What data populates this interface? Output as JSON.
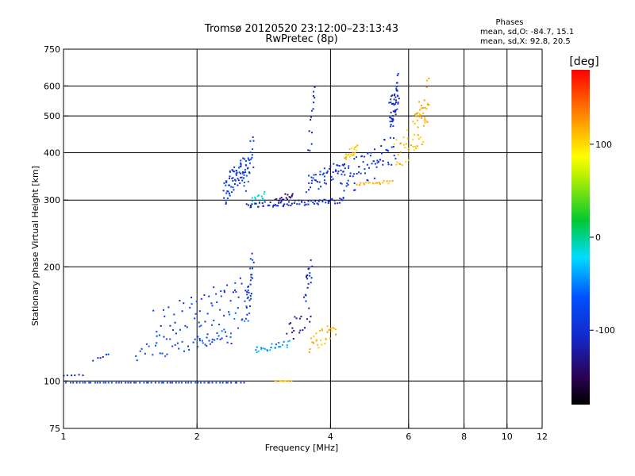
{
  "header": {
    "title": "Tromsø 20120520 23:12:00–23:13:43",
    "subtitle": "RwPretec (8p)"
  },
  "phases_box": {
    "heading": "Phases",
    "line_o": "mean, sd,O: -84.7, 15.1",
    "line_x": "mean, sd,X:  92.8, 20.5"
  },
  "colorbar": {
    "label": "[deg]",
    "ticks": [
      {
        "value": 100,
        "label": "100"
      },
      {
        "value": 0,
        "label": "0"
      },
      {
        "value": -100,
        "label": "-100"
      }
    ],
    "range": [
      -180,
      180
    ]
  },
  "chart_data": {
    "type": "scatter",
    "xlabel": "Frequency [MHz]",
    "ylabel": "Stationary phase Virtual Height [km]",
    "xscale": "log",
    "yscale": "log",
    "xlim": [
      1,
      12
    ],
    "ylim": [
      75,
      750
    ],
    "xticks": [
      {
        "value": 1,
        "label": "1"
      },
      {
        "value": 2,
        "label": "2"
      },
      {
        "value": 4,
        "label": "4"
      },
      {
        "value": 6,
        "label": "6"
      },
      {
        "value": 8,
        "label": "8"
      },
      {
        "value": 10,
        "label": "10"
      },
      {
        "value": 12,
        "label": "12"
      }
    ],
    "yticks": [
      {
        "value": 75,
        "label": "75"
      },
      {
        "value": 100,
        "label": "100"
      },
      {
        "value": 200,
        "label": "200"
      },
      {
        "value": 300,
        "label": "300"
      },
      {
        "value": 400,
        "label": "400"
      },
      {
        "value": 500,
        "label": "500"
      },
      {
        "value": 600,
        "label": "600"
      },
      {
        "value": 750,
        "label": "750"
      }
    ],
    "xgrid": [
      2,
      4,
      6,
      8,
      10
    ],
    "ygrid": [
      100,
      200,
      300,
      400,
      500,
      600
    ],
    "series": [
      {
        "traces": [
          {
            "x0": 1.0,
            "x1": 2.55,
            "y0": 99,
            "y1": 99,
            "n": 60,
            "phase": -95
          },
          {
            "x0": 1.0,
            "x1": 1.1,
            "y0": 103,
            "y1": 104,
            "n": 6,
            "phase": -110
          },
          {
            "x0": 1.17,
            "x1": 1.27,
            "y0": 113,
            "y1": 118,
            "n": 6,
            "phase": -100
          },
          {
            "x0": 1.45,
            "x1": 2.4,
            "y0": 112,
            "y1": 138,
            "n": 40,
            "phase": -85
          },
          {
            "x0": 1.6,
            "x1": 2.55,
            "y0": 125,
            "y1": 190,
            "n": 55,
            "phase": -95
          },
          {
            "x0": 2.0,
            "x1": 2.6,
            "y0": 120,
            "y1": 160,
            "n": 30,
            "phase": -80
          },
          {
            "x0": 2.58,
            "x1": 2.68,
            "y0": 135,
            "y1": 230,
            "n": 30,
            "phase": -100
          },
          {
            "x0": 2.7,
            "x1": 3.25,
            "y0": 118,
            "y1": 128,
            "n": 25,
            "phase": -60
          },
          {
            "x0": 3.2,
            "x1": 3.6,
            "y0": 125,
            "y1": 160,
            "n": 20,
            "phase": -125
          },
          {
            "x0": 3.5,
            "x1": 3.62,
            "y0": 155,
            "y1": 220,
            "n": 18,
            "phase": -110
          },
          {
            "x0": 3.6,
            "x1": 4.1,
            "y0": 118,
            "y1": 145,
            "n": 30,
            "phase": 118
          },
          {
            "x0": 3.0,
            "x1": 3.25,
            "y0": 100,
            "y1": 100,
            "n": 14,
            "phase": 118
          },
          {
            "x0": 2.3,
            "x1": 2.55,
            "y0": 290,
            "y1": 400,
            "n": 60,
            "phase": -100
          },
          {
            "x0": 2.55,
            "x1": 2.68,
            "y0": 300,
            "y1": 455,
            "n": 30,
            "phase": -90
          },
          {
            "x0": 2.65,
            "x1": 2.85,
            "y0": 285,
            "y1": 320,
            "n": 14,
            "phase": -40
          },
          {
            "x0": 2.6,
            "x1": 4.3,
            "y0": 285,
            "y1": 305,
            "n": 70,
            "phase": -110
          },
          {
            "x0": 3.0,
            "x1": 3.3,
            "y0": 290,
            "y1": 320,
            "n": 18,
            "phase": -135
          },
          {
            "x0": 3.55,
            "x1": 4.3,
            "y0": 310,
            "y1": 390,
            "n": 50,
            "phase": -100
          },
          {
            "x0": 3.58,
            "x1": 3.7,
            "y0": 380,
            "y1": 620,
            "n": 14,
            "phase": -110
          },
          {
            "x0": 4.2,
            "x1": 5.6,
            "y0": 300,
            "y1": 450,
            "n": 70,
            "phase": -100
          },
          {
            "x0": 4.3,
            "x1": 4.6,
            "y0": 380,
            "y1": 420,
            "n": 20,
            "phase": 112
          },
          {
            "x0": 4.6,
            "x1": 5.5,
            "y0": 325,
            "y1": 340,
            "n": 20,
            "phase": 118
          },
          {
            "x0": 5.45,
            "x1": 5.7,
            "y0": 450,
            "y1": 650,
            "n": 50,
            "phase": -105
          },
          {
            "x0": 5.6,
            "x1": 6.6,
            "y0": 340,
            "y1": 540,
            "n": 45,
            "phase": 112
          },
          {
            "x0": 6.2,
            "x1": 6.7,
            "y0": 400,
            "y1": 640,
            "n": 25,
            "phase": 125
          }
        ]
      }
    ]
  }
}
